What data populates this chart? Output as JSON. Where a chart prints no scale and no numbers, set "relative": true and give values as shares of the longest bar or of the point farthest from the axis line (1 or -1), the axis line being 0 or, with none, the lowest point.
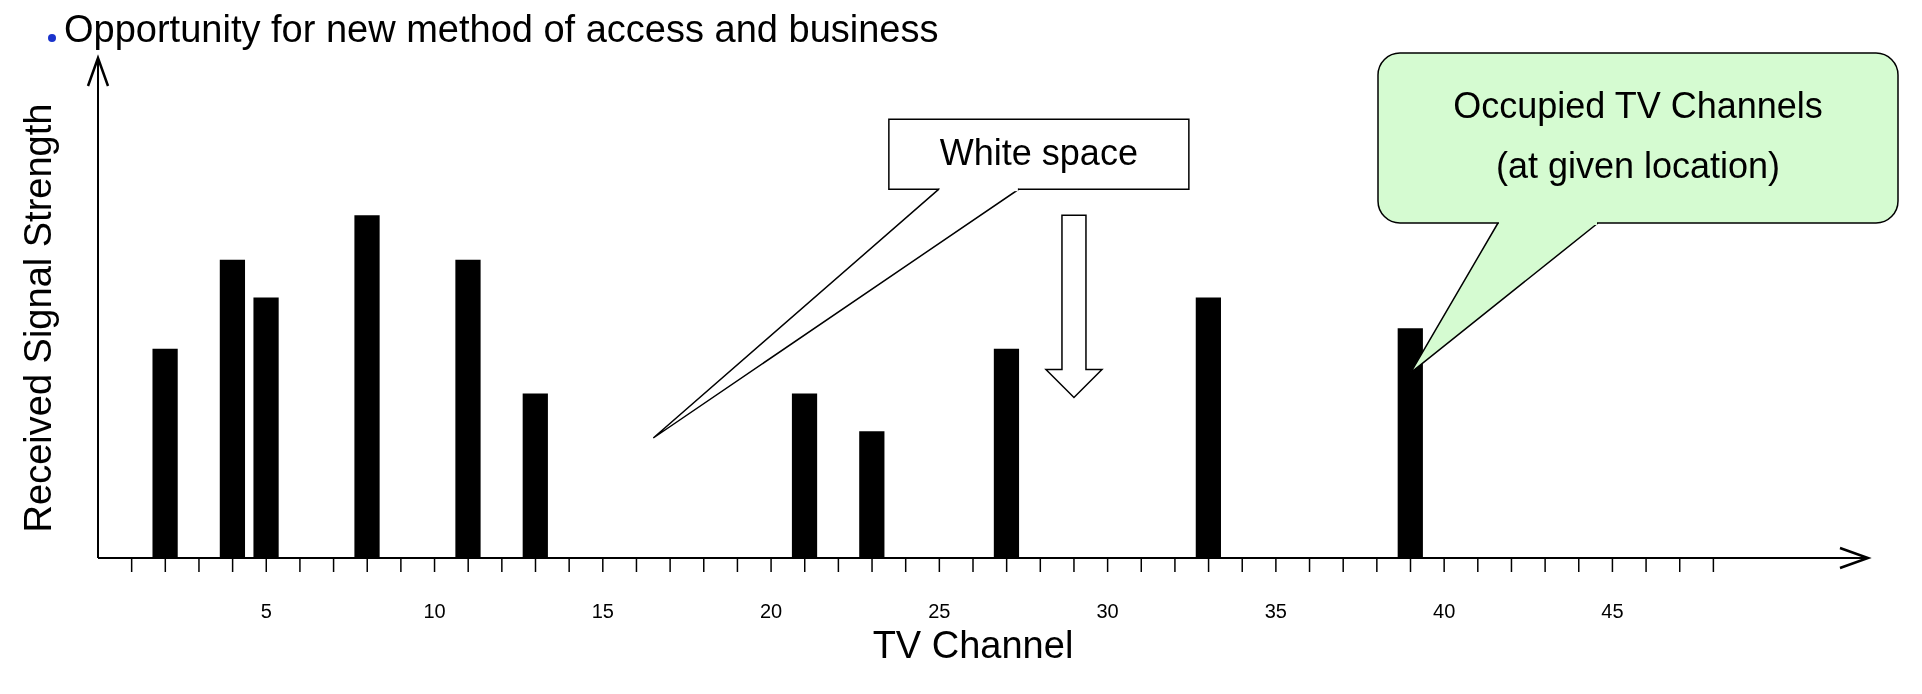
{
  "chart_data": {
    "type": "bar",
    "title": "Opportunity for new method of access and business",
    "xlabel": "TV Channel",
    "ylabel": "Received Signal Strength",
    "relative": true,
    "x": [
      2,
      4,
      5,
      8,
      11,
      13,
      21,
      23,
      27,
      33,
      39
    ],
    "values": [
      0.61,
      0.87,
      0.76,
      1,
      0.87,
      0.48,
      0.48,
      0.37,
      0.61,
      0.76,
      0.67
    ],
    "color": "#000000",
    "xlim": [
      0,
      52
    ],
    "xticks": [
      {
        "value": 1,
        "label": null
      },
      {
        "value": 2,
        "label": null
      },
      {
        "value": 3,
        "label": null
      },
      {
        "value": 4,
        "label": null
      },
      5,
      {
        "value": 6,
        "label": null
      },
      {
        "value": 7,
        "label": null
      },
      {
        "value": 8,
        "label": null
      },
      {
        "value": 9,
        "label": null
      },
      10,
      {
        "value": 11,
        "label": null
      },
      {
        "value": 12,
        "label": null
      },
      {
        "value": 13,
        "label": null
      },
      {
        "value": 14,
        "label": null
      },
      15,
      {
        "value": 16,
        "label": null
      },
      {
        "value": 17,
        "label": null
      },
      {
        "value": 18,
        "label": null
      },
      {
        "value": 19,
        "label": null
      },
      20,
      {
        "value": 21,
        "label": null
      },
      {
        "value": 22,
        "label": null
      },
      {
        "value": 23,
        "label": null
      },
      {
        "value": 24,
        "label": null
      },
      25,
      {
        "value": 26,
        "label": null
      },
      {
        "value": 27,
        "label": null
      },
      {
        "value": 28,
        "label": null
      },
      {
        "value": 29,
        "label": null
      },
      30,
      {
        "value": 31,
        "label": null
      },
      {
        "value": 32,
        "label": null
      },
      {
        "value": 33,
        "label": null
      },
      {
        "value": 34,
        "label": null
      },
      35,
      {
        "value": 36,
        "label": null
      },
      {
        "value": 37,
        "label": null
      },
      {
        "value": 38,
        "label": null
      },
      {
        "value": 39,
        "label": null
      },
      40,
      {
        "value": 41,
        "label": null
      },
      {
        "value": 42,
        "label": null
      },
      {
        "value": 43,
        "label": null
      },
      {
        "value": 44,
        "label": null
      },
      45,
      {
        "value": 46,
        "label": null
      },
      {
        "value": 47,
        "label": null
      },
      {
        "value": 48,
        "label": null
      }
    ],
    "annotations": [
      "White space",
      "Occupied TV Channels\n(at given location)"
    ]
  }
}
